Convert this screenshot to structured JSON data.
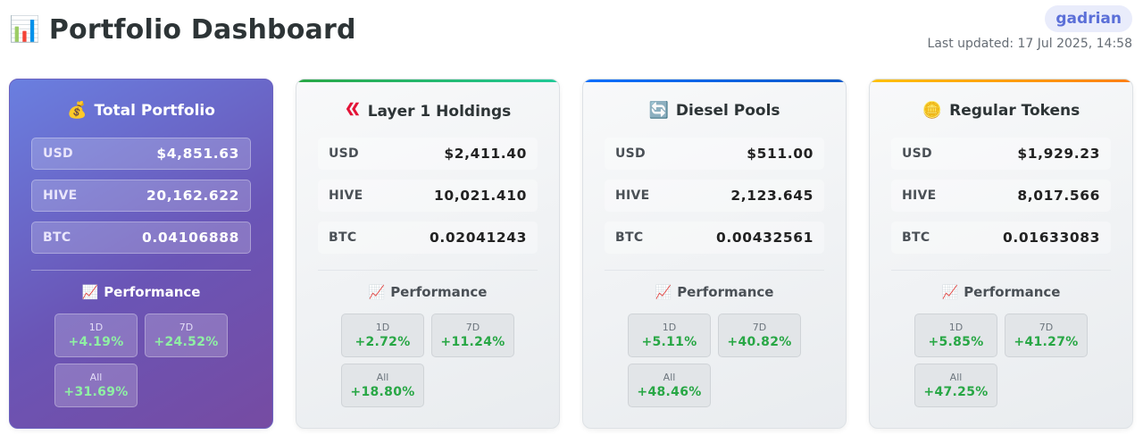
{
  "header": {
    "icon": "bar-chart-icon",
    "title": "Portfolio Dashboard",
    "user": "gadrian",
    "last_updated": "Last updated: 17 Jul 2025, 14:58"
  },
  "colors": {
    "main_gradient_start": "#667eea",
    "main_gradient_end": "#764ba2",
    "layer1_accent": "#28a745",
    "diesel_accent": "#0d6efd",
    "regular_accent": "#fd7e14",
    "positive": "#28a745"
  },
  "cards": [
    {
      "icon": "money-bag-icon",
      "title": "Total Portfolio",
      "rows": [
        {
          "label": "USD",
          "value": "$4,851.63"
        },
        {
          "label": "HIVE",
          "value": "20,162.622"
        },
        {
          "label": "BTC",
          "value": "0.04106888"
        }
      ],
      "performance_title": "Performance",
      "performance": [
        {
          "label": "1D",
          "value": "+4.19%"
        },
        {
          "label": "7D",
          "value": "+24.52%"
        },
        {
          "label": "All",
          "value": "+31.69%"
        }
      ]
    },
    {
      "icon": "hive-logo-icon",
      "title": "Layer 1 Holdings",
      "rows": [
        {
          "label": "USD",
          "value": "$2,411.40"
        },
        {
          "label": "HIVE",
          "value": "10,021.410"
        },
        {
          "label": "BTC",
          "value": "0.02041243"
        }
      ],
      "performance_title": "Performance",
      "performance": [
        {
          "label": "1D",
          "value": "+2.72%"
        },
        {
          "label": "7D",
          "value": "+11.24%"
        },
        {
          "label": "All",
          "value": "+18.80%"
        }
      ]
    },
    {
      "icon": "refresh-arrows-icon",
      "title": "Diesel Pools",
      "rows": [
        {
          "label": "USD",
          "value": "$511.00"
        },
        {
          "label": "HIVE",
          "value": "2,123.645"
        },
        {
          "label": "BTC",
          "value": "0.00432561"
        }
      ],
      "performance_title": "Performance",
      "performance": [
        {
          "label": "1D",
          "value": "+5.11%"
        },
        {
          "label": "7D",
          "value": "+40.82%"
        },
        {
          "label": "All",
          "value": "+48.46%"
        }
      ]
    },
    {
      "icon": "coin-icon",
      "title": "Regular Tokens",
      "rows": [
        {
          "label": "USD",
          "value": "$1,929.23"
        },
        {
          "label": "HIVE",
          "value": "8,017.566"
        },
        {
          "label": "BTC",
          "value": "0.01633083"
        }
      ],
      "performance_title": "Performance",
      "performance": [
        {
          "label": "1D",
          "value": "+5.85%"
        },
        {
          "label": "7D",
          "value": "+41.27%"
        },
        {
          "label": "All",
          "value": "+47.25%"
        }
      ]
    }
  ]
}
